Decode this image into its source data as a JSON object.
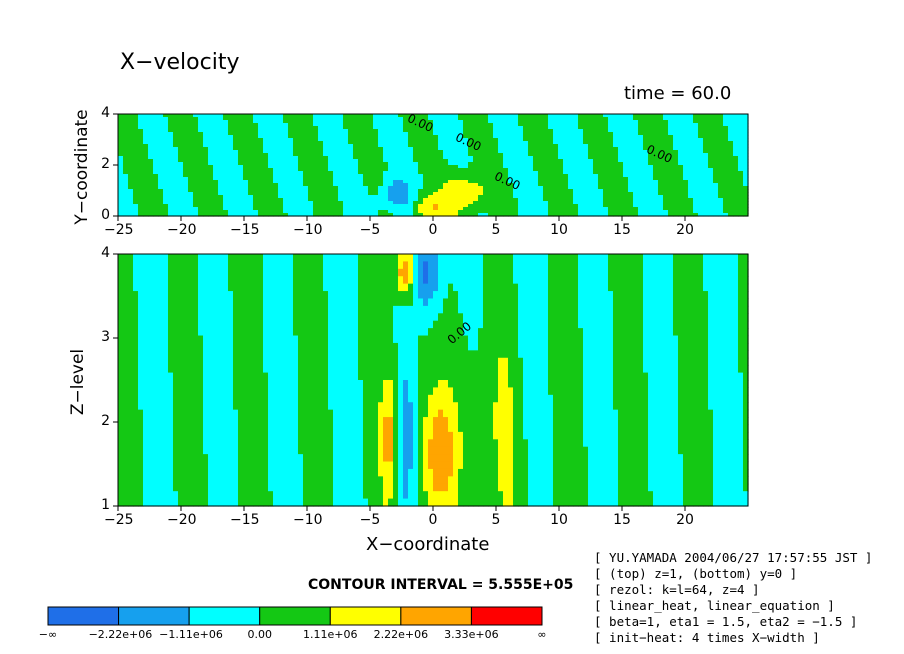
{
  "title": "X−velocity",
  "time_label": "time = 60.0",
  "contour_interval": "CONTOUR INTERVAL = 5.555E+05",
  "meta_lines": [
    "[ YU.YAMADA 2004/06/27 17:57:55 JST ]",
    "[ (top) z=1, (bottom) y=0 ]",
    "[ rezol: k=l=64, z=4 ]",
    "[ linear_heat, linear_equation ]",
    "[ beta=1, eta1 = 1.5, eta2 = −1.5 ]",
    "[ init−heat: 4 times X−width ]"
  ],
  "colors": {
    "levels": [
      "#1f6fe8",
      "#16a0ee",
      "#00ffff",
      "#14c814",
      "#ffff00",
      "#ffa500",
      "#ff0000"
    ]
  },
  "chart_data": [
    {
      "type": "contour",
      "panel": "top",
      "xlabel": "",
      "ylabel": "Y−coordinate",
      "xlim": [
        -25,
        25
      ],
      "ylim": [
        0,
        4
      ],
      "x_ticks": [
        -25,
        -20,
        -15,
        -10,
        -5,
        0,
        5,
        10,
        15,
        20
      ],
      "x_tick_labels": [
        "−25",
        "−20",
        "−15",
        "−10",
        "−5",
        "0",
        "5",
        "10",
        "15",
        "20"
      ],
      "y_ticks": [
        0,
        2,
        4
      ],
      "y_tick_labels": [
        "0",
        "2",
        "4"
      ],
      "contour_labels": [
        "0.00",
        "0.00",
        "0.00",
        "0.00"
      ]
    },
    {
      "type": "contour",
      "panel": "bottom",
      "xlabel": "X−coordinate",
      "ylabel": "Z−level",
      "xlim": [
        -25,
        25
      ],
      "ylim": [
        1,
        4
      ],
      "x_ticks": [
        -25,
        -20,
        -15,
        -10,
        -5,
        0,
        5,
        10,
        15,
        20
      ],
      "x_tick_labels": [
        "−25",
        "−20",
        "−15",
        "−10",
        "−5",
        "0",
        "5",
        "10",
        "15",
        "20"
      ],
      "y_ticks": [
        1,
        2,
        3,
        4
      ],
      "y_tick_labels": [
        "1",
        "2",
        "3",
        "4"
      ],
      "contour_labels": [
        "0.00"
      ]
    }
  ],
  "colorbar": {
    "labels": [
      "−∞",
      "−2.22e+06",
      "−1.11e+06",
      "0.00",
      "1.11e+06",
      "2.22e+06",
      "3.33e+06",
      "∞"
    ]
  }
}
